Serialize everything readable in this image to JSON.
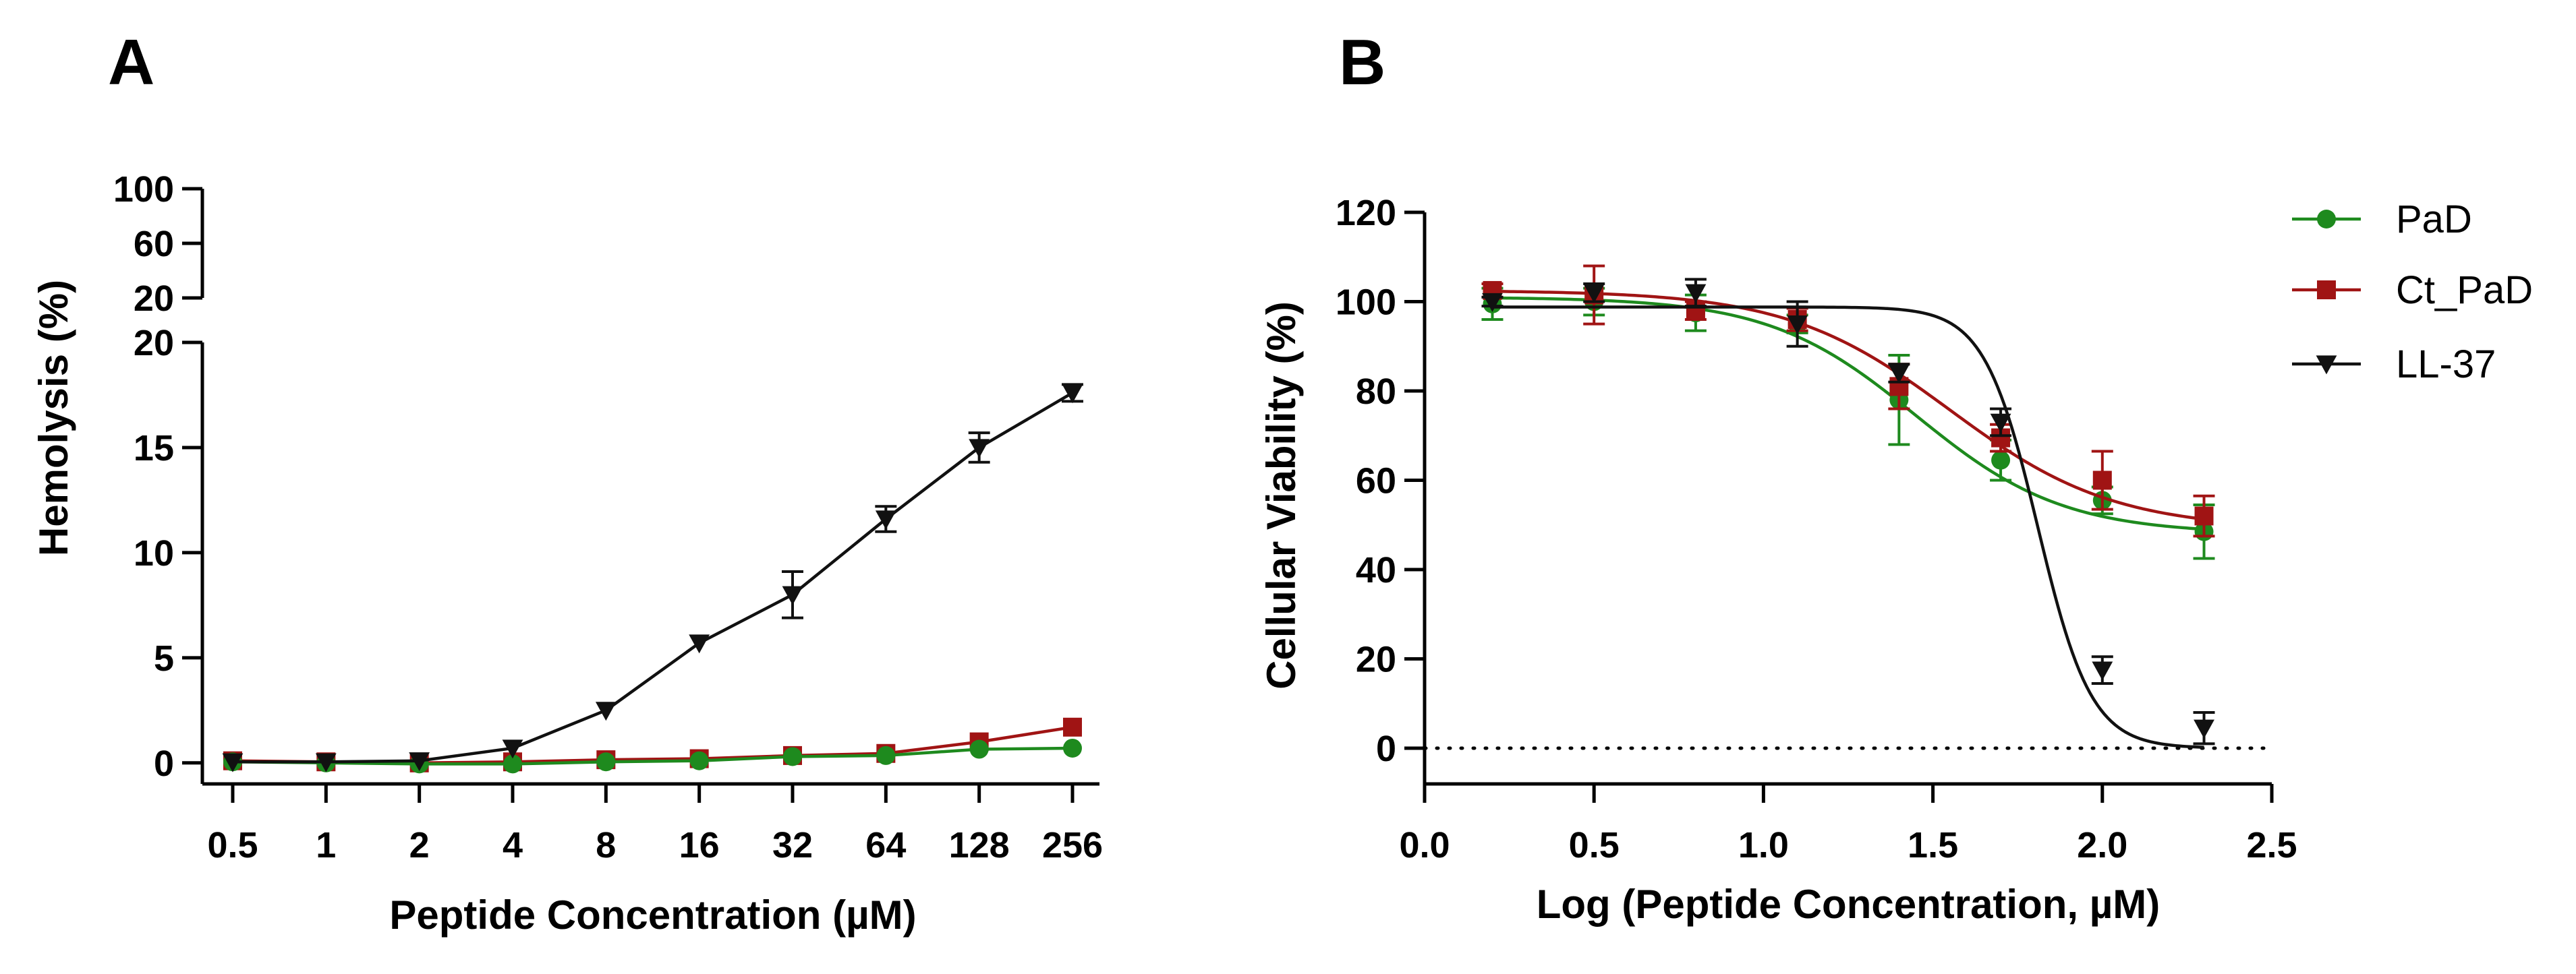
{
  "legend": {
    "items": [
      {
        "label": "PaD",
        "color": "#1e8a1e",
        "marker": "circle"
      },
      {
        "label": "Ct_PaD",
        "color": "#a01414",
        "marker": "square"
      },
      {
        "label": "LL-37",
        "color": "#111111",
        "marker": "triangle-down"
      }
    ]
  },
  "chart_data": [
    {
      "panel": "A",
      "type": "line",
      "xlabel": "Peptide Concentration (µM)",
      "ylabel": "Hemolysis (%)",
      "categories": [
        "0.5",
        "1",
        "2",
        "4",
        "8",
        "16",
        "32",
        "64",
        "128",
        "256"
      ],
      "y_axis_broken": true,
      "ylim_lower": [
        -1,
        20
      ],
      "ylim_upper": [
        20,
        100
      ],
      "yticks_lower": [
        "0",
        "5",
        "10",
        "15",
        "20"
      ],
      "yticks_upper": [
        "20",
        "60",
        "100"
      ],
      "series": [
        {
          "name": "PaD",
          "color": "#1e8a1e",
          "marker": "circle",
          "values": [
            0.05,
            0.0,
            -0.05,
            -0.05,
            0.05,
            0.1,
            0.3,
            0.35,
            0.65,
            0.7
          ],
          "errors": [
            0.05,
            0.05,
            0.05,
            0.05,
            0.05,
            0.05,
            0.05,
            0.1,
            0.1,
            0.05
          ]
        },
        {
          "name": "Ct_PaD",
          "color": "#a01414",
          "marker": "square",
          "values": [
            0.1,
            0.05,
            0.0,
            0.05,
            0.15,
            0.2,
            0.35,
            0.45,
            1.0,
            1.7
          ],
          "errors": [
            0.05,
            0.05,
            0.05,
            0.05,
            0.05,
            0.05,
            0.05,
            0.1,
            0.1,
            0.1
          ]
        },
        {
          "name": "LL-37",
          "color": "#111111",
          "marker": "triangle-down",
          "values": [
            0.05,
            0.05,
            0.1,
            0.7,
            2.5,
            5.7,
            8.0,
            11.6,
            15.0,
            17.6
          ],
          "errors": [
            0.05,
            0.05,
            0.05,
            0.1,
            0.1,
            0.15,
            1.1,
            0.6,
            0.7,
            0.4
          ]
        }
      ]
    },
    {
      "panel": "B",
      "type": "line",
      "xlabel": "Log (Peptide Concentration, µM)",
      "ylabel": "Cellular Viability (%)",
      "xlim": [
        0,
        2.5
      ],
      "ylim": [
        -8,
        120
      ],
      "xticks": [
        "0.0",
        "0.5",
        "1.0",
        "1.5",
        "2.0",
        "2.5"
      ],
      "yticks": [
        "0",
        "20",
        "40",
        "60",
        "80",
        "100",
        "120"
      ],
      "reference_line": {
        "y": 0,
        "style": "dotted"
      },
      "series": [
        {
          "name": "PaD",
          "color": "#1e8a1e",
          "marker": "circle",
          "x": [
            0.2,
            0.5,
            0.8,
            1.1,
            1.4,
            1.7,
            2.0,
            2.3
          ],
          "values": [
            99.5,
            100,
            97.5,
            95,
            78,
            64.5,
            55.5,
            48.5
          ],
          "errors": [
            3.5,
            3,
            4,
            2,
            10,
            4.5,
            3,
            6
          ],
          "fit": {
            "top": 101,
            "bottom": 48,
            "logEC50": 1.45,
            "hill": 2.0
          }
        },
        {
          "name": "Ct_PaD",
          "color": "#a01414",
          "marker": "square",
          "x": [
            0.2,
            0.5,
            0.8,
            1.1,
            1.4,
            1.7,
            2.0,
            2.3
          ],
          "values": [
            102.5,
            101.5,
            98,
            96,
            81,
            69.5,
            60,
            52
          ],
          "errors": [
            1.5,
            6.5,
            2,
            2.5,
            5,
            3,
            6.5,
            4.5
          ],
          "fit": {
            "top": 102.5,
            "bottom": 49,
            "logEC50": 1.55,
            "hill": 1.8
          }
        },
        {
          "name": "LL-37",
          "color": "#111111",
          "marker": "triangle-down",
          "x": [
            0.2,
            0.5,
            0.8,
            1.1,
            1.4,
            1.7,
            2.0,
            2.3
          ],
          "values": [
            100,
            102,
            102,
            95,
            84,
            73,
            17.5,
            4.5
          ],
          "errors": [
            1,
            2,
            3,
            5,
            2,
            3,
            3,
            3.5
          ],
          "fit": {
            "top": 98.8,
            "bottom": 0,
            "logEC50": 1.81,
            "hill": 5.5
          }
        }
      ]
    }
  ],
  "panels": {
    "a_letter": "A",
    "b_letter": "B"
  }
}
